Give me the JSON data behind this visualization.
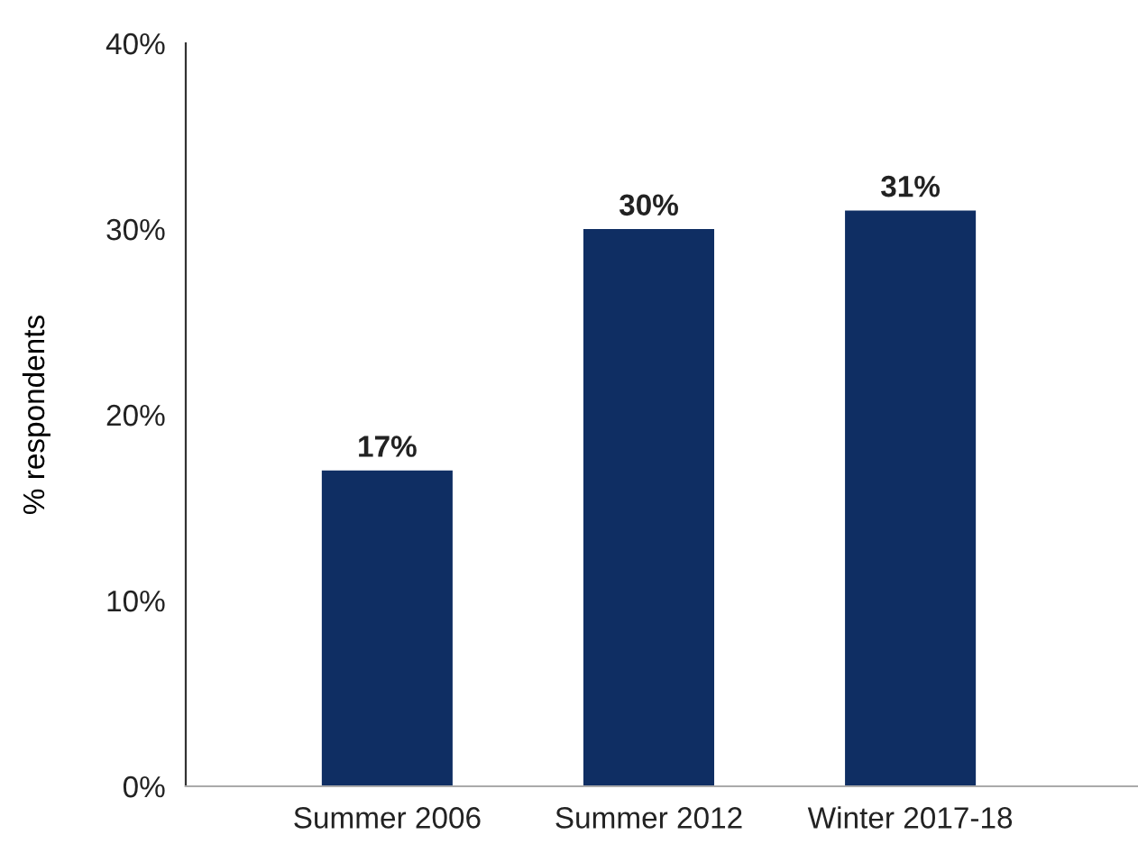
{
  "chart_data": {
    "type": "bar",
    "ylabel": "% respondents",
    "categories": [
      "Summer 2006",
      "Summer 2012",
      "Winter 2017-18"
    ],
    "values": [
      17,
      30,
      31
    ],
    "color": "#0f2e63",
    "value_labels": [
      "17%",
      "30%",
      "31%"
    ],
    "ylim": [
      0,
      40
    ],
    "yticks": [
      {
        "value": 0,
        "label": "0%"
      },
      {
        "value": 10,
        "label": "10%"
      },
      {
        "value": 20,
        "label": "20%"
      },
      {
        "value": 30,
        "label": "30%"
      },
      {
        "value": 40,
        "label": "40%"
      }
    ],
    "grid": false,
    "legend": false
  }
}
